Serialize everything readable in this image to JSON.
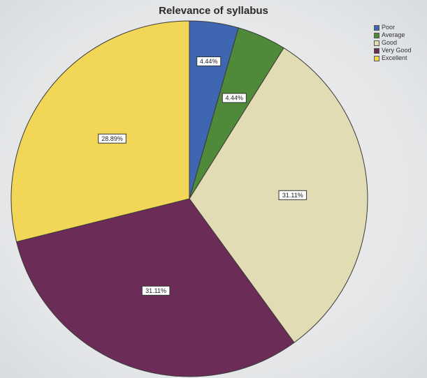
{
  "chart_data": {
    "type": "pie",
    "title": "Relevance of syllabus",
    "categories": [
      "Poor",
      "Average",
      "Good",
      "Very Good",
      "Excellent"
    ],
    "values": [
      4.44,
      4.44,
      31.11,
      31.11,
      28.89
    ],
    "labels": [
      "4.44%",
      "4.44%",
      "31.11%",
      "31.11%",
      "28.89%"
    ],
    "colors": [
      "#3f66b0",
      "#4f8a3a",
      "#e1dcb4",
      "#6b2d57",
      "#f2d657"
    ],
    "legend_position": "top-right"
  }
}
